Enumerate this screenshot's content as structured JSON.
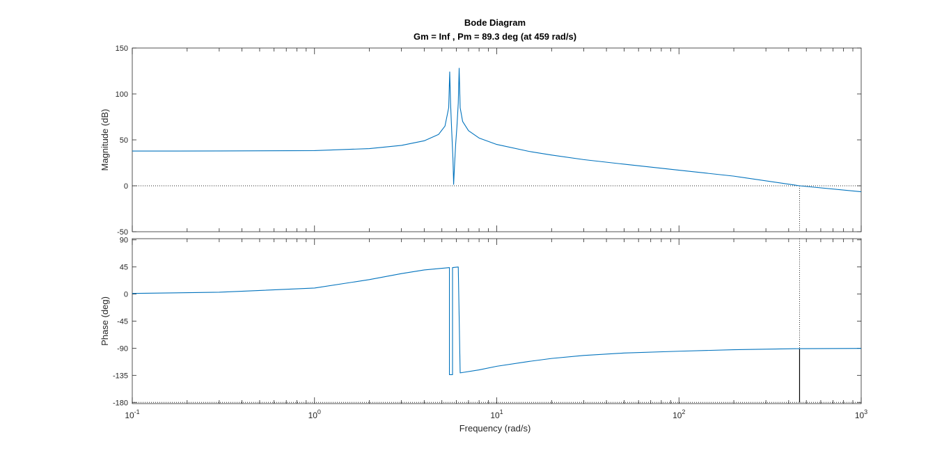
{
  "chart_data": {
    "type": "line",
    "title": "Bode Diagram",
    "subtitle": "Gm = Inf ,  Pm = 89.3 deg (at 459 rad/s)",
    "xlabel": "Frequency  (rad/s)",
    "xscale": "log",
    "xlim": [
      0.1,
      1000
    ],
    "x_tick_labels": [
      {
        "base": "10",
        "exp": "-1"
      },
      {
        "base": "10",
        "exp": "0"
      },
      {
        "base": "10",
        "exp": "1"
      },
      {
        "base": "10",
        "exp": "2"
      },
      {
        "base": "10",
        "exp": "3"
      }
    ],
    "x_tick_values": [
      0.1,
      1,
      10,
      100,
      1000
    ],
    "grid": false,
    "crossover_frequency": 459,
    "line_color": "#0072BD",
    "marker_color": "#000000",
    "panels": [
      {
        "name": "magnitude",
        "ylabel": "Magnitude (dB)",
        "ylim": [
          -50,
          150
        ],
        "y_ticks": [
          -50,
          0,
          50,
          100,
          150
        ],
        "reference_line": 0,
        "points": [
          [
            0.1,
            37.8
          ],
          [
            0.3,
            37.9
          ],
          [
            1,
            38.3
          ],
          [
            2,
            40.5
          ],
          [
            3,
            44
          ],
          [
            4,
            49
          ],
          [
            4.8,
            56
          ],
          [
            5.2,
            65
          ],
          [
            5.45,
            85
          ],
          [
            5.52,
            124
          ],
          [
            5.58,
            90
          ],
          [
            5.66,
            60
          ],
          [
            5.75,
            30
          ],
          [
            5.8,
            1.5
          ],
          [
            5.86,
            20
          ],
          [
            5.95,
            45
          ],
          [
            6.05,
            65
          ],
          [
            6.15,
            90
          ],
          [
            6.22,
            128
          ],
          [
            6.3,
            85
          ],
          [
            6.5,
            70
          ],
          [
            7,
            60
          ],
          [
            8,
            52
          ],
          [
            10,
            45
          ],
          [
            15,
            37.5
          ],
          [
            20,
            33.5
          ],
          [
            30,
            28.5
          ],
          [
            50,
            23.5
          ],
          [
            100,
            17
          ],
          [
            200,
            10.5
          ],
          [
            459,
            0
          ],
          [
            1000,
            -6.5
          ]
        ]
      },
      {
        "name": "phase",
        "ylabel": "Phase (deg)",
        "ylim": [
          -182,
          92
        ],
        "y_ticks": [
          -180,
          -135,
          -90,
          -45,
          0,
          45,
          90
        ],
        "reference_line": -180,
        "points": [
          [
            0.1,
            1
          ],
          [
            0.3,
            3
          ],
          [
            1,
            10
          ],
          [
            2,
            24
          ],
          [
            3,
            34
          ],
          [
            4,
            40
          ],
          [
            5.5,
            44
          ],
          [
            5.5,
            -134
          ],
          [
            5.72,
            -134
          ],
          [
            5.72,
            44
          ],
          [
            6.15,
            45
          ],
          [
            6.3,
            -131
          ],
          [
            8,
            -126
          ],
          [
            10,
            -120
          ],
          [
            15,
            -112
          ],
          [
            20,
            -107
          ],
          [
            30,
            -102
          ],
          [
            50,
            -98
          ],
          [
            100,
            -95
          ],
          [
            200,
            -92.5
          ],
          [
            459,
            -90.7
          ],
          [
            1000,
            -90.3
          ]
        ]
      }
    ]
  }
}
